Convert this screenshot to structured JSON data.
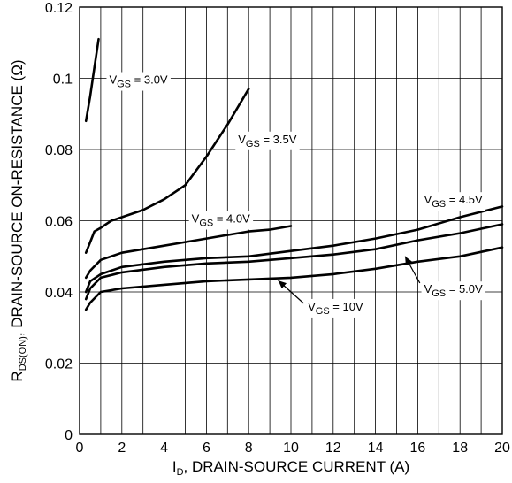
{
  "chart_data": {
    "type": "line",
    "title": "",
    "xlabel": {
      "main": "I",
      "sub": "D",
      "rest": ", DRAIN-SOURCE CURRENT (A)"
    },
    "ylabel": {
      "main": "R",
      "sub": "DS(ON)",
      "rest": ", DRAIN-SOURCE ON-RESISTANCE (Ω)"
    },
    "xlim": [
      0,
      20
    ],
    "ylim": [
      0,
      0.12
    ],
    "xticks": [
      0,
      2,
      4,
      6,
      8,
      10,
      12,
      14,
      16,
      18,
      20
    ],
    "xtick_labels": [
      "0",
      "2",
      "4",
      "6",
      "8",
      "10",
      "12",
      "14",
      "16",
      "18",
      "20"
    ],
    "yticks": [
      0,
      0.02,
      0.04,
      0.06,
      0.08,
      0.1,
      0.12
    ],
    "ytick_labels": [
      "0",
      "0.02",
      "0.04",
      "0.06",
      "0.08",
      "0.1",
      "0.12"
    ],
    "xgrid_step": 1,
    "grid": true,
    "series": [
      {
        "label_main": "V",
        "label_sub": "GS",
        "label_rest": " = 3.0V",
        "x": [
          0.3,
          0.5,
          0.7,
          0.9
        ],
        "y": [
          0.088,
          0.095,
          0.103,
          0.111
        ]
      },
      {
        "label_main": "V",
        "label_sub": "GS",
        "label_rest": " = 3.5V",
        "x": [
          0.3,
          0.5,
          0.7,
          1,
          1.5,
          2,
          3,
          4,
          5,
          5.5,
          6,
          7,
          8
        ],
        "y": [
          0.051,
          0.054,
          0.057,
          0.058,
          0.06,
          0.061,
          0.063,
          0.066,
          0.07,
          0.074,
          0.078,
          0.087,
          0.097
        ]
      },
      {
        "label_main": "V",
        "label_sub": "GS",
        "label_rest": " = 4.0V",
        "x": [
          0.3,
          0.5,
          1,
          2,
          3,
          4,
          5,
          6,
          7,
          8,
          9,
          10
        ],
        "y": [
          0.044,
          0.046,
          0.049,
          0.051,
          0.052,
          0.053,
          0.054,
          0.055,
          0.056,
          0.057,
          0.0575,
          0.0585
        ]
      },
      {
        "label_main": "V",
        "label_sub": "GS",
        "label_rest": " = 4.5V",
        "x": [
          0.3,
          0.5,
          1,
          2,
          4,
          6,
          8,
          10,
          12,
          14,
          16,
          18,
          20
        ],
        "y": [
          0.04,
          0.043,
          0.045,
          0.047,
          0.0485,
          0.0495,
          0.05,
          0.0515,
          0.053,
          0.055,
          0.0575,
          0.061,
          0.064
        ]
      },
      {
        "label_main": "V",
        "label_sub": "GS",
        "label_rest": " = 5.0V",
        "x": [
          0.3,
          0.5,
          1,
          2,
          4,
          6,
          8,
          10,
          12,
          14,
          16,
          18,
          20
        ],
        "y": [
          0.038,
          0.041,
          0.044,
          0.0455,
          0.047,
          0.048,
          0.0485,
          0.0495,
          0.0505,
          0.052,
          0.0545,
          0.0565,
          0.059
        ]
      },
      {
        "label_main": "V",
        "label_sub": "GS",
        "label_rest": " = 10V",
        "x": [
          0.3,
          0.5,
          1,
          2,
          4,
          6,
          8,
          10,
          12,
          14,
          16,
          18,
          20
        ],
        "y": [
          0.035,
          0.037,
          0.04,
          0.041,
          0.042,
          0.043,
          0.0435,
          0.044,
          0.045,
          0.0465,
          0.0485,
          0.05,
          0.0525
        ]
      }
    ]
  }
}
